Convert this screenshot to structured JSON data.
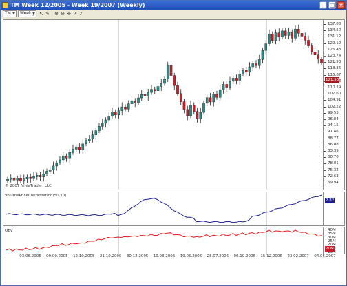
{
  "window": {
    "title": "TM  Week 12/2005 - Week 19/2007 (Weekly)",
    "minimize_label": "_",
    "maximize_label": "□",
    "close_label": "×"
  },
  "toolbar": {
    "symbol": "TM",
    "period": "Weekly",
    "icons": [
      "cursor-icon",
      "pencil-icon",
      "zoom-in-icon",
      "zoom-out-icon",
      "crosshair-icon",
      "pointer-icon",
      "draw-tools-icon"
    ]
  },
  "price_panel": {
    "copyright": "© 2007 NinjaTrader, LLC",
    "last_price": "121.53",
    "axis_ticks": [
      "137.88",
      "134.50",
      "131.12",
      "129.12",
      "126.43",
      "123.74",
      "121.53",
      "118.36",
      "115.67",
      "112.98",
      "110.29",
      "107.60",
      "104.91",
      "102.22",
      "99.53",
      "96.84",
      "94.15",
      "91.46",
      "88.77",
      "86.08",
      "83.39",
      "80.70",
      "78.01",
      "75.32",
      "72.63",
      "69.94"
    ]
  },
  "vpc_panel": {
    "label": "VolumePriceConfirmation(50,10)",
    "last_value": "2.82"
  },
  "obv_panel": {
    "label": "OBV",
    "axis_ticks": [
      "40M",
      "35M",
      "30M",
      "25M",
      "20M",
      "15M",
      "10M"
    ],
    "last_value": "20M"
  },
  "date_axis": [
    "03.06.2005",
    "09.09.2005",
    "12.10.2005",
    "21.10.2005",
    "30.12.2005",
    "10.03.2006",
    "19.05.2006",
    "28.07.2006",
    "06.10.2006",
    "15.12.2006",
    "23.02.2007",
    "04.05.2007"
  ],
  "colors": {
    "bull": "#2e8b84",
    "bear": "#c81e2a",
    "vpc_line": "#1c1f8c",
    "obv_line": "#e31a1a",
    "price_tag": "#9b1c22",
    "vpc_tag": "#1c1f8c",
    "obv_tag": "#c81e2a"
  },
  "chart_data": {
    "type": "candlestick",
    "x_range": [
      "Week 12/2005",
      "Week 19/2007"
    ],
    "price_range": [
      69.94,
      137.88
    ],
    "close_series": [
      72.5,
      73.1,
      72.2,
      72.9,
      71.8,
      72.6,
      73.4,
      72.8,
      73.6,
      74.2,
      73.5,
      74.8,
      75.9,
      76.4,
      78.1,
      79.4,
      80.7,
      82.3,
      81.5,
      83.8,
      85.2,
      86.1,
      85.0,
      87.4,
      88.9,
      89.6,
      91.2,
      93.0,
      94.8,
      96.1,
      97.5,
      99.2,
      100.8,
      99.6,
      101.4,
      103.0,
      102.1,
      104.3,
      105.6,
      104.9,
      106.8,
      108.2,
      107.5,
      109.1,
      110.4,
      109.8,
      111.6,
      112.9,
      114.8,
      120.5,
      116.2,
      112.0,
      108.6,
      105.2,
      101.9,
      99.3,
      103.8,
      101.1,
      98.0,
      100.7,
      104.6,
      106.9,
      105.1,
      108.3,
      107.0,
      110.2,
      112.5,
      111.3,
      113.8,
      115.1,
      114.2,
      116.9,
      118.4,
      117.6,
      119.9,
      121.2,
      120.4,
      123.0,
      126.8,
      129.6,
      133.7,
      131.0,
      134.2,
      132.5,
      135.0,
      133.1,
      134.6,
      132.0,
      135.8,
      134.0,
      132.8,
      131.1,
      128.7,
      126.2,
      124.9,
      123.1,
      121.53
    ]
  }
}
